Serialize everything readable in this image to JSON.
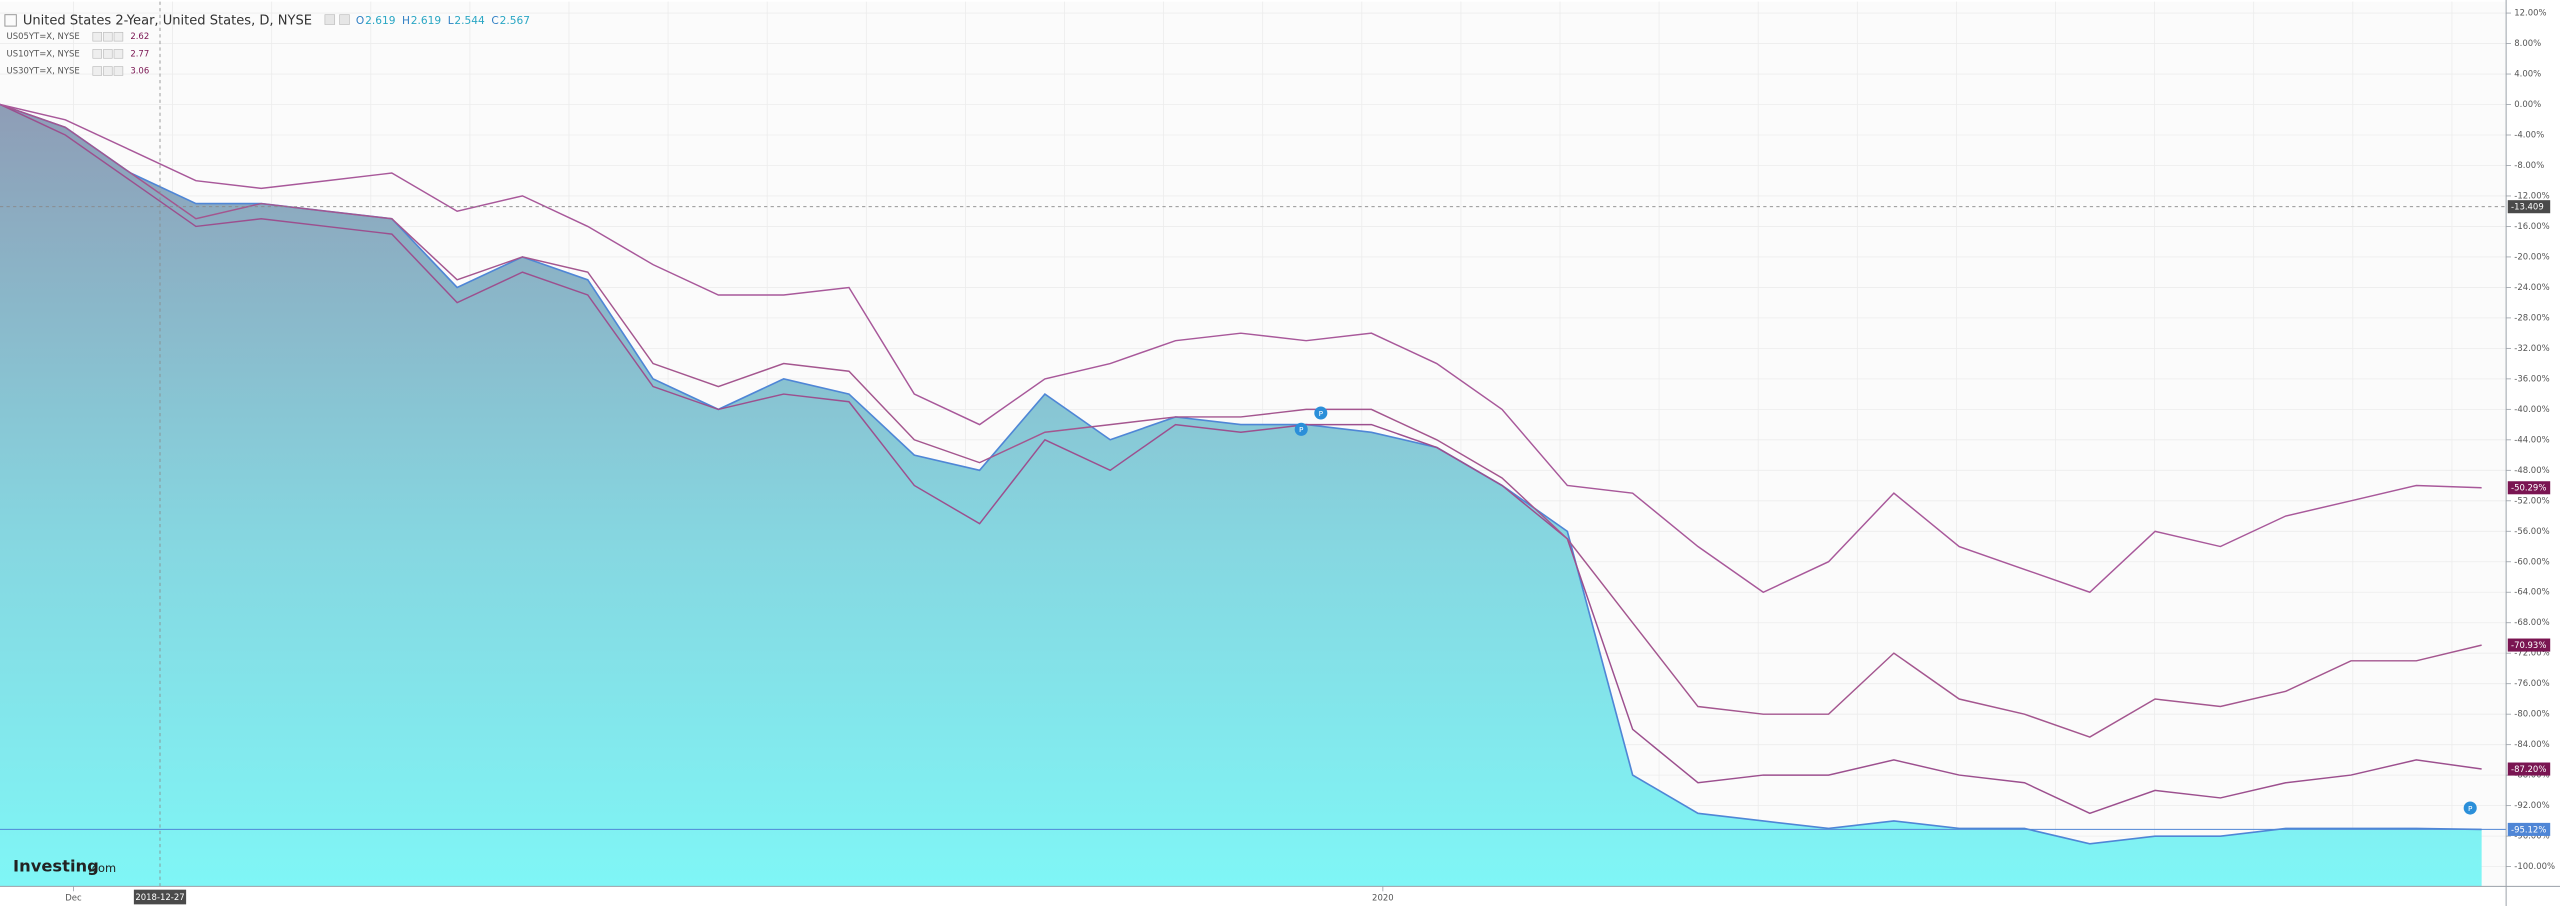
{
  "chart_data": {
    "type": "area",
    "title": "United States 2-Year, United States, D, NYSE",
    "ohlc": [
      {
        "label": "O",
        "value": 2.619
      },
      {
        "label": "H",
        "value": 2.619
      },
      {
        "label": "L",
        "value": 2.544
      },
      {
        "label": "C",
        "value": 2.567
      }
    ],
    "x": [
      0,
      1,
      2,
      3,
      4,
      5,
      6,
      7,
      8,
      9,
      10,
      11,
      12,
      13,
      14,
      15,
      16,
      17,
      18,
      19,
      20,
      21,
      22,
      23,
      24,
      25,
      26,
      27,
      28,
      29,
      30,
      31,
      32,
      33,
      34,
      35,
      36,
      37,
      38
    ],
    "xlim": [
      0,
      38.375
    ],
    "xticks": [
      {
        "value": 1.125,
        "label": "Dec"
      },
      {
        "value": 21.175,
        "label": "2020"
      }
    ],
    "ylim": [
      -102.6,
      13.5
    ],
    "yticks": [
      {
        "value": 12,
        "label": "12.00%"
      },
      {
        "value": 8,
        "label": "8.00%"
      },
      {
        "value": 4,
        "label": "4.00%"
      },
      {
        "value": 0,
        "label": "0.00%"
      },
      {
        "value": -4,
        "label": "-4.00%"
      },
      {
        "value": -8,
        "label": "-8.00%"
      },
      {
        "value": -12,
        "label": "-12.00%"
      },
      {
        "value": -16,
        "label": "-16.00%"
      },
      {
        "value": -20,
        "label": "-20.00%"
      },
      {
        "value": -24,
        "label": "-24.00%"
      },
      {
        "value": -28,
        "label": "-28.00%"
      },
      {
        "value": -32,
        "label": "-32.00%"
      },
      {
        "value": -36,
        "label": "-36.00%"
      },
      {
        "value": -40,
        "label": "-40.00%"
      },
      {
        "value": -44,
        "label": "-44.00%"
      },
      {
        "value": -48,
        "label": "-48.00%"
      },
      {
        "value": -52,
        "label": "-52.00%"
      },
      {
        "value": -56,
        "label": "-56.00%"
      },
      {
        "value": -60,
        "label": "-60.00%"
      },
      {
        "value": -64,
        "label": "-64.00%"
      },
      {
        "value": -68,
        "label": "-68.00%"
      },
      {
        "value": -72,
        "label": "-72.00%"
      },
      {
        "value": -76,
        "label": "-76.00%"
      },
      {
        "value": -80,
        "label": "-80.00%"
      },
      {
        "value": -84,
        "label": "-84.00%"
      },
      {
        "value": -88,
        "label": "-88.00%"
      },
      {
        "value": -92,
        "label": "-92.00%"
      },
      {
        "value": -96,
        "label": "-96.00%"
      },
      {
        "value": -100,
        "label": "-100.00%"
      }
    ],
    "grid": true,
    "crosshair": {
      "x": 2.45,
      "x_label": "2018-12-27",
      "y": -13.409
    },
    "event_label": "P",
    "watermark": [
      "Investing",
      ".com"
    ],
    "series": [
      {
        "type": "area",
        "color": "#4f86d6",
        "badge_color": "#4f86d6",
        "last_label": "-95.12%",
        "values": [
          0,
          -3,
          -9,
          -13,
          -13,
          -14,
          -15,
          -24,
          -20,
          -23,
          -36,
          -40,
          -36,
          -38,
          -46,
          -48,
          -38,
          -44,
          -41,
          -42,
          -42,
          -43,
          -45,
          -50,
          -56,
          -88,
          -93,
          -94,
          -95,
          -94,
          -95,
          -95,
          -97,
          -96,
          -96,
          -95,
          -95,
          -95,
          -95.12
        ]
      },
      {
        "type": "line",
        "name": "US05YT=X, NYSE",
        "legend_value": 2.62,
        "color": "#9c4f8e",
        "badge_color": "#7a1552",
        "last_label": "-87.20%",
        "values": [
          0,
          -4,
          -10,
          -16,
          -15,
          -16,
          -17,
          -26,
          -22,
          -25,
          -37,
          -40,
          -38,
          -39,
          -50,
          -55,
          -44,
          -48,
          -42,
          -43,
          -42,
          -42,
          -45,
          -50,
          -57,
          -82,
          -89,
          -88,
          -88,
          -86,
          -88,
          -89,
          -93,
          -90,
          -91,
          -89,
          -88,
          -86,
          -87.2
        ]
      },
      {
        "type": "line",
        "name": "US10YT=X, NYSE",
        "legend_value": 2.77,
        "color": "#a4568f",
        "badge_color": "#7a1552",
        "last_label": "-70.93%",
        "values": [
          0,
          -3,
          -9,
          -15,
          -13,
          -14,
          -15,
          -23,
          -20,
          -22,
          -34,
          -37,
          -34,
          -35,
          -44,
          -47,
          -43,
          -42,
          -41,
          -41,
          -40,
          -40,
          -44,
          -49,
          -57,
          -68,
          -79,
          -80,
          -80,
          -72,
          -78,
          -80,
          -83,
          -78,
          -79,
          -77,
          -73,
          -73,
          -70.93
        ]
      },
      {
        "type": "line",
        "name": "US30YT=X, NYSE",
        "legend_value": 3.06,
        "color": "#a8589a",
        "badge_color": "#7a1552",
        "last_label": "-50.29%",
        "values": [
          0,
          -2,
          -6,
          -10,
          -11,
          -10,
          -9,
          -14,
          -12,
          -16,
          -21,
          -25,
          -25,
          -24,
          -38,
          -42,
          -36,
          -34,
          -31,
          -30,
          -31,
          -30,
          -34,
          -40,
          -50,
          -51,
          -58,
          -64,
          -60,
          -51,
          -58,
          -61,
          -64,
          -56,
          -58,
          -54,
          -52,
          -50,
          -50.29
        ]
      }
    ]
  }
}
